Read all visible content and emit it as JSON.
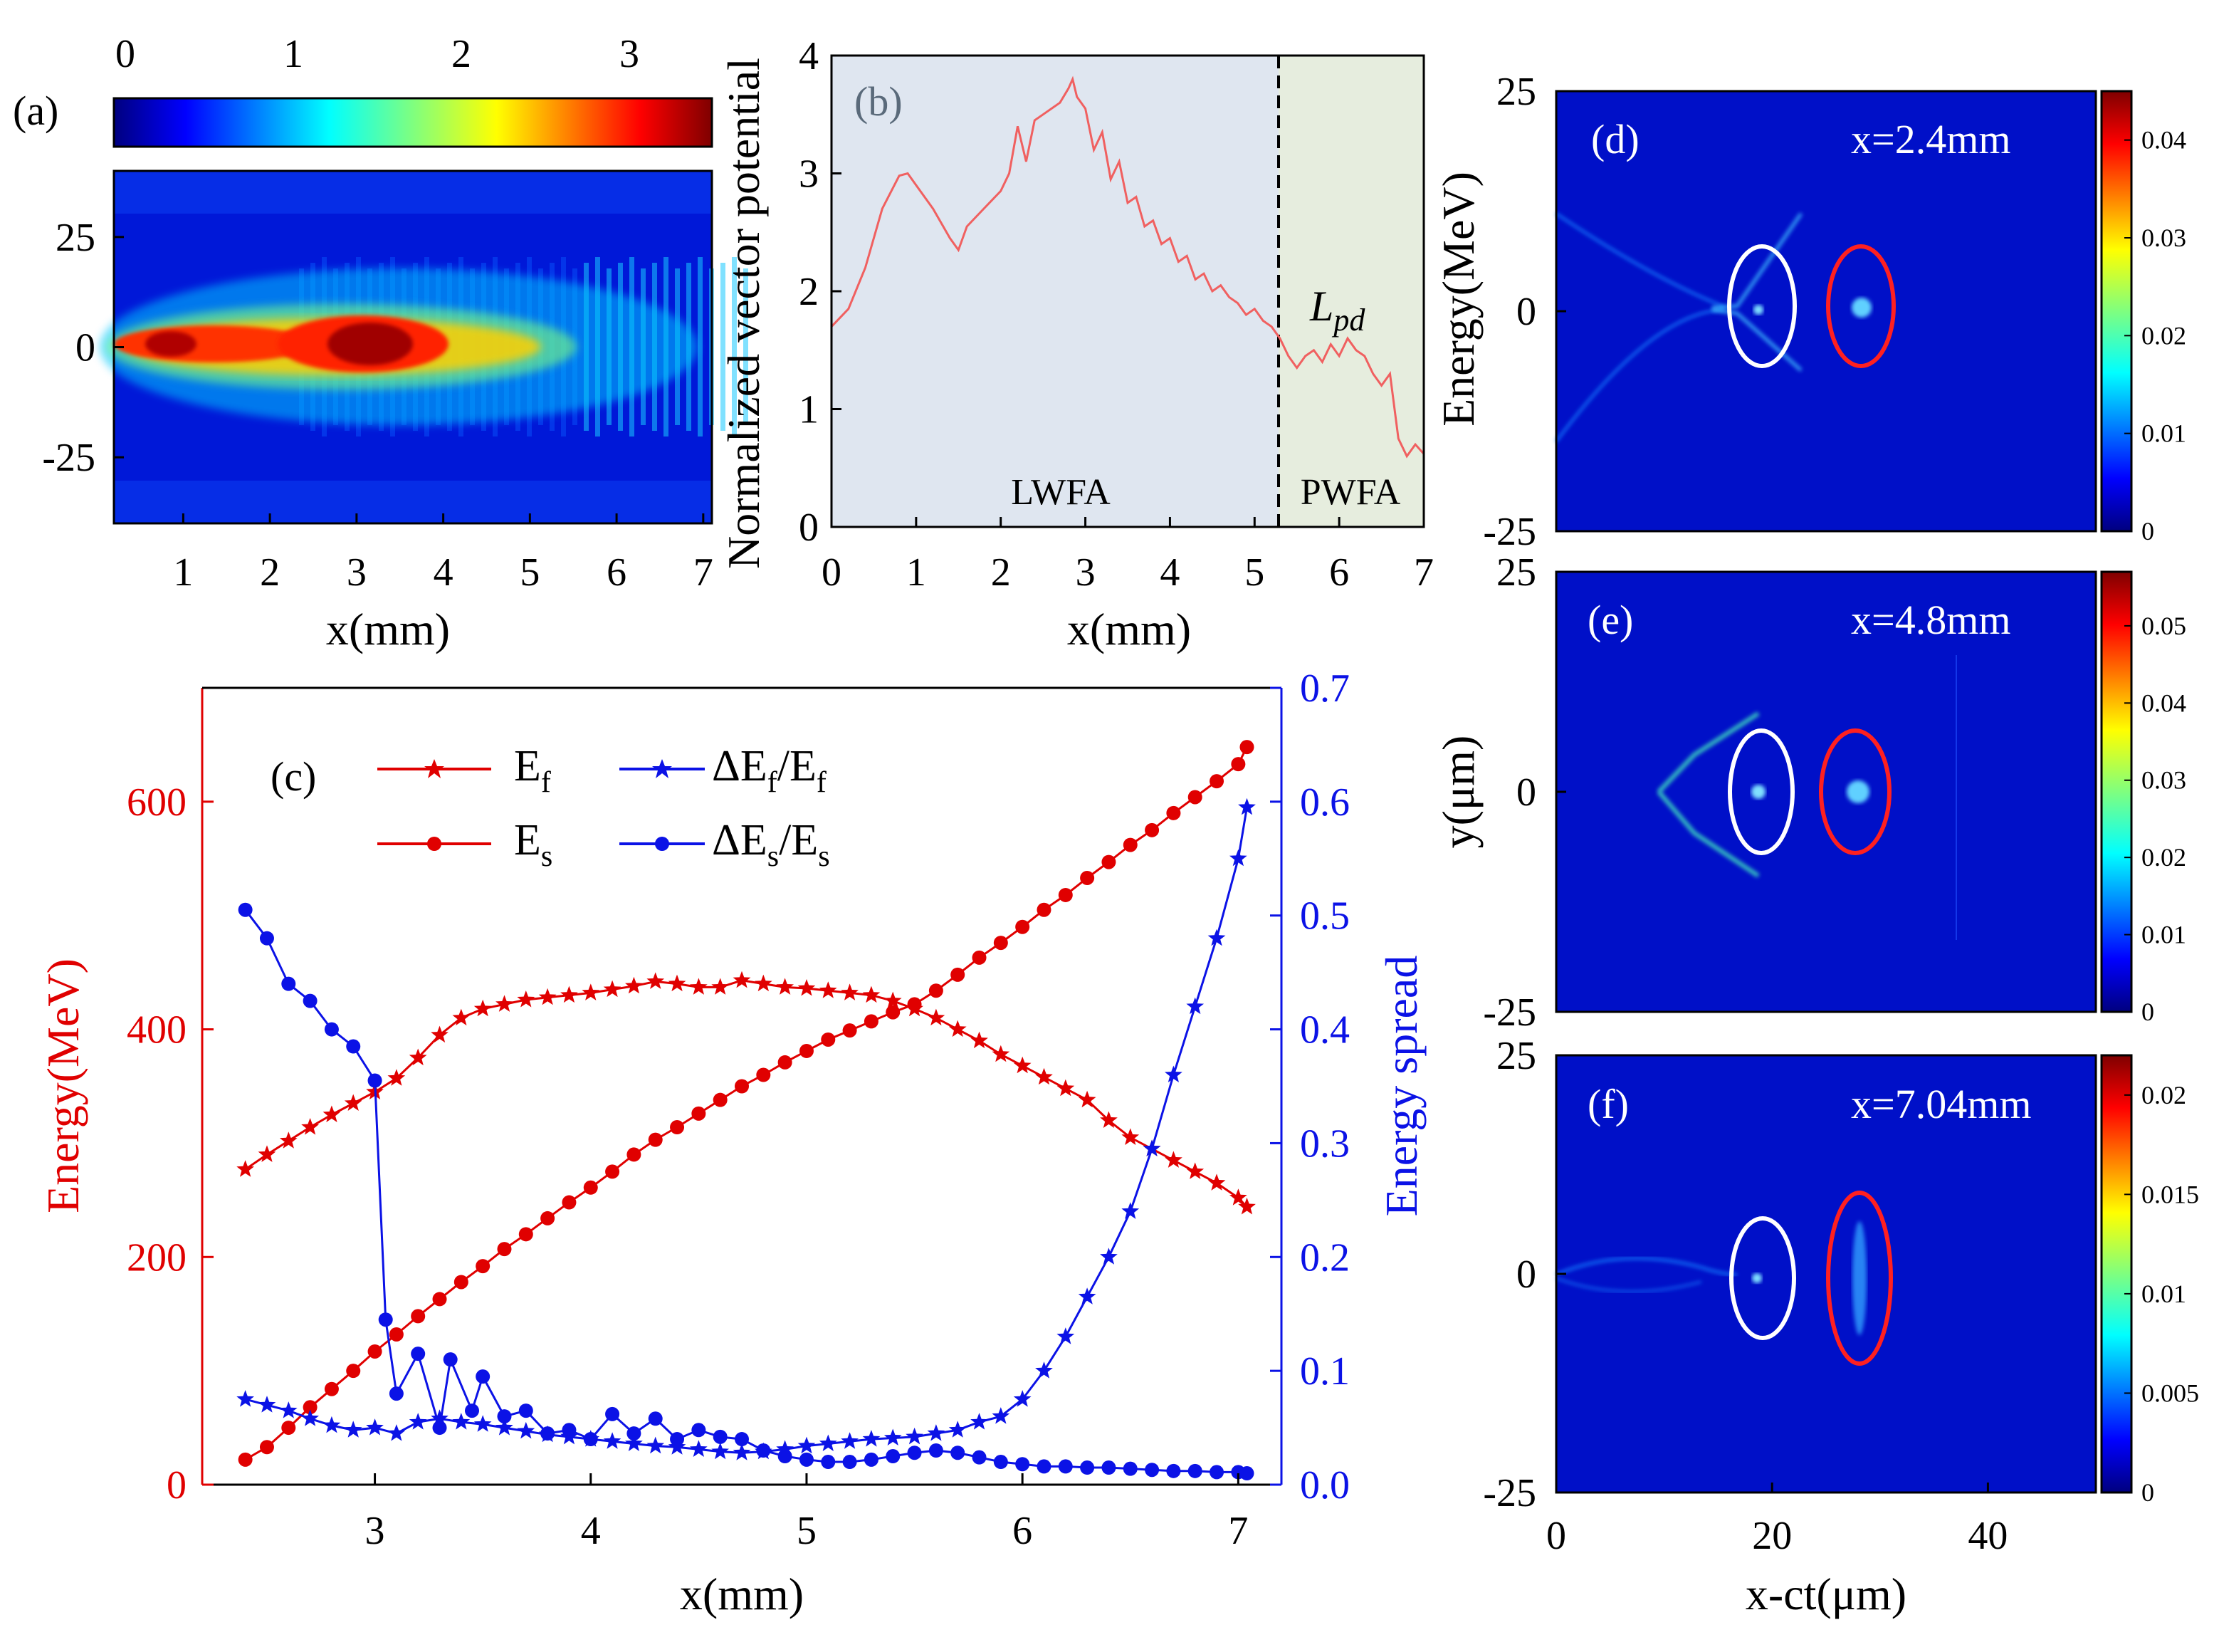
{
  "figure": {
    "panel_a": {
      "tag": "(a)",
      "colorbar_ticks": [
        "0",
        "1",
        "2",
        "3"
      ],
      "y_ticks": [
        "25",
        "0",
        "-25"
      ],
      "x_ticks": [
        "1",
        "2",
        "3",
        "4",
        "5",
        "6",
        "7"
      ],
      "xlabel": "x(mm)"
    },
    "panel_b": {
      "tag": "(b)",
      "ylabel": "Normalized  vector potential",
      "xlabel": "x(mm)",
      "region_left": "LWFA",
      "region_right": "PWFA",
      "annotation": "L",
      "annotation_sub": "pd",
      "x_ticks": [
        "0",
        "1",
        "2",
        "3",
        "4",
        "5",
        "6",
        "7"
      ],
      "y_ticks": [
        "0",
        "1",
        "2",
        "3",
        "4"
      ],
      "left_region_color": "#dfe6f0",
      "right_region_color": "#e6edde"
    },
    "panel_c": {
      "tag": "(c)",
      "xlabel": "x(mm)",
      "ylabel_left": "Energy(MeV)",
      "ylabel_right": "Energy spread",
      "x_ticks": [
        "3",
        "4",
        "5",
        "6",
        "7"
      ],
      "y_left_ticks": [
        "0",
        "200",
        "400",
        "600"
      ],
      "y_right_ticks": [
        "0.0",
        "0.1",
        "0.2",
        "0.3",
        "0.4",
        "0.5",
        "0.6",
        "0.7"
      ],
      "legend": [
        {
          "main": "E",
          "sub": "f"
        },
        {
          "main": "ΔE",
          "sub1": "f",
          "mid": "/E",
          "sub2": "f"
        },
        {
          "main": "E",
          "sub": "s"
        },
        {
          "main": "ΔE",
          "sub1": "s",
          "mid": "/E",
          "sub2": "s"
        }
      ]
    },
    "panel_d": {
      "tag": "(d)",
      "label": "x=2.4mm",
      "cbar_ticks": [
        "0.04",
        "0.03",
        "0.02",
        "0.01",
        "0"
      ]
    },
    "panel_e": {
      "tag": "(e)",
      "label": "x=4.8mm",
      "cbar_ticks": [
        "0.05",
        "0.04",
        "0.03",
        "0.02",
        "0.01",
        "0"
      ]
    },
    "panel_f": {
      "tag": "(f)",
      "label": "x=7.04mm",
      "cbar_ticks": [
        "0.02",
        "0.015",
        "0.01",
        "0.005",
        "0"
      ]
    },
    "right_column": {
      "y_ticks_d": [
        "25",
        "0",
        "-25"
      ],
      "y_ticks_e": [
        "25",
        "0",
        "-25"
      ],
      "y_ticks_f": [
        "25",
        "0",
        "-25"
      ],
      "ylabel_d": "Energy(MeV)",
      "ylabel_e": "y(μm)",
      "x_ticks": [
        "0",
        "20",
        "40"
      ],
      "xlabel": "x-ct(μm)"
    }
  },
  "chart_data": [
    {
      "type": "heatmap",
      "panel": "a",
      "xlabel": "x(mm)",
      "xlim": [
        0.2,
        7.1
      ],
      "ylim": [
        -40,
        40
      ],
      "colorbar_range": [
        0,
        3.5
      ],
      "colorscale": "jet",
      "description_values": {
        "peak_x_mm": 3.2,
        "peak_value": 3.3
      }
    },
    {
      "type": "line",
      "panel": "b",
      "xlabel": "x(mm)",
      "ylabel": "Normalized  vector potential",
      "xlim": [
        0,
        7
      ],
      "ylim": [
        0,
        4
      ],
      "divider_x": 5.35,
      "x": [
        0,
        0.2,
        0.4,
        0.6,
        0.8,
        0.9,
        1.0,
        1.2,
        1.4,
        1.5,
        1.6,
        1.8,
        2.0,
        2.1,
        2.2,
        2.3,
        2.4,
        2.5,
        2.6,
        2.7,
        2.8,
        2.85,
        2.9,
        3.0,
        3.1,
        3.2,
        3.3,
        3.4,
        3.5,
        3.6,
        3.7,
        3.8,
        3.9,
        4.0,
        4.1,
        4.2,
        4.3,
        4.4,
        4.5,
        4.6,
        4.7,
        4.8,
        4.9,
        5.0,
        5.1,
        5.2,
        5.3,
        5.4,
        5.5,
        5.6,
        5.7,
        5.8,
        5.9,
        6.0,
        6.1,
        6.2,
        6.3,
        6.4,
        6.5,
        6.6,
        6.7,
        6.8,
        6.9,
        7.0
      ],
      "y": [
        1.7,
        1.85,
        2.2,
        2.7,
        2.98,
        3.0,
        2.9,
        2.7,
        2.45,
        2.35,
        2.55,
        2.7,
        2.85,
        3.0,
        3.4,
        3.1,
        3.45,
        3.5,
        3.55,
        3.6,
        3.72,
        3.8,
        3.65,
        3.55,
        3.2,
        3.35,
        2.95,
        3.1,
        2.75,
        2.8,
        2.55,
        2.6,
        2.4,
        2.45,
        2.25,
        2.3,
        2.1,
        2.15,
        2.0,
        2.05,
        1.95,
        1.9,
        1.8,
        1.85,
        1.75,
        1.7,
        1.6,
        1.45,
        1.35,
        1.45,
        1.5,
        1.4,
        1.55,
        1.45,
        1.6,
        1.5,
        1.45,
        1.3,
        1.2,
        1.3,
        0.75,
        0.6,
        0.7,
        0.62
      ]
    },
    {
      "type": "line",
      "panel": "c",
      "xlabel": "x(mm)",
      "ylabel": "Energy(MeV)",
      "y2label": "Energy spread",
      "xlim": [
        2.2,
        7.2
      ],
      "ylim": [
        0,
        700
      ],
      "y2lim": [
        0,
        0.7
      ],
      "series": [
        {
          "name": "E_f",
          "axis": "left",
          "marker": "star",
          "color": "#e00000",
          "x": [
            2.4,
            2.5,
            2.6,
            2.7,
            2.8,
            2.9,
            3.0,
            3.1,
            3.2,
            3.3,
            3.4,
            3.5,
            3.6,
            3.7,
            3.8,
            3.9,
            4.0,
            4.1,
            4.2,
            4.3,
            4.4,
            4.5,
            4.6,
            4.7,
            4.8,
            4.9,
            5.0,
            5.1,
            5.2,
            5.3,
            5.4,
            5.5,
            5.6,
            5.7,
            5.8,
            5.9,
            6.0,
            6.1,
            6.2,
            6.3,
            6.4,
            6.5,
            6.6,
            6.7,
            6.8,
            6.9,
            7.0,
            7.04
          ],
          "values": [
            277,
            290,
            302,
            314,
            325,
            335,
            345,
            357,
            375,
            395,
            410,
            418,
            422,
            426,
            428,
            430,
            432,
            435,
            438,
            442,
            440,
            437,
            437,
            443,
            440,
            437,
            436,
            434,
            432,
            430,
            425,
            418,
            410,
            400,
            390,
            378,
            368,
            358,
            348,
            338,
            320,
            305,
            295,
            285,
            275,
            265,
            252,
            244
          ]
        },
        {
          "name": "E_s",
          "axis": "left",
          "marker": "circle",
          "color": "#e00000",
          "x": [
            2.4,
            2.5,
            2.6,
            2.7,
            2.8,
            2.9,
            3.0,
            3.1,
            3.2,
            3.3,
            3.4,
            3.5,
            3.6,
            3.7,
            3.8,
            3.9,
            4.0,
            4.1,
            4.2,
            4.3,
            4.4,
            4.5,
            4.6,
            4.7,
            4.8,
            4.9,
            5.0,
            5.1,
            5.2,
            5.3,
            5.4,
            5.5,
            5.6,
            5.7,
            5.8,
            5.9,
            6.0,
            6.1,
            6.2,
            6.3,
            6.4,
            6.5,
            6.6,
            6.7,
            6.8,
            6.9,
            7.0,
            7.04
          ],
          "values": [
            22,
            33,
            50,
            68,
            84,
            100,
            117,
            132,
            148,
            163,
            178,
            192,
            207,
            220,
            234,
            248,
            261,
            275,
            290,
            303,
            314,
            326,
            338,
            350,
            360,
            371,
            381,
            391,
            399,
            407,
            415,
            422,
            434,
            448,
            463,
            476,
            490,
            505,
            518,
            533,
            547,
            562,
            575,
            590,
            604,
            618,
            633,
            648
          ]
        },
        {
          "name": "ΔE_f/E_f",
          "axis": "right",
          "marker": "star",
          "color": "#0b12e6",
          "x": [
            2.4,
            2.5,
            2.6,
            2.7,
            2.8,
            2.9,
            3.0,
            3.1,
            3.2,
            3.3,
            3.4,
            3.5,
            3.6,
            3.7,
            3.8,
            3.9,
            4.0,
            4.1,
            4.2,
            4.3,
            4.4,
            4.5,
            4.6,
            4.7,
            4.8,
            4.9,
            5.0,
            5.1,
            5.2,
            5.3,
            5.4,
            5.5,
            5.6,
            5.7,
            5.8,
            5.9,
            6.0,
            6.1,
            6.2,
            6.3,
            6.4,
            6.5,
            6.6,
            6.7,
            6.8,
            6.9,
            7.0,
            7.04
          ],
          "values": [
            0.075,
            0.07,
            0.065,
            0.058,
            0.052,
            0.048,
            0.05,
            0.045,
            0.055,
            0.058,
            0.055,
            0.053,
            0.05,
            0.047,
            0.044,
            0.042,
            0.04,
            0.038,
            0.036,
            0.034,
            0.033,
            0.031,
            0.029,
            0.028,
            0.029,
            0.031,
            0.034,
            0.036,
            0.038,
            0.04,
            0.041,
            0.042,
            0.045,
            0.048,
            0.055,
            0.06,
            0.075,
            0.1,
            0.13,
            0.165,
            0.2,
            0.24,
            0.295,
            0.36,
            0.42,
            0.48,
            0.55,
            0.595
          ]
        },
        {
          "name": "ΔE_s/E_s",
          "axis": "right",
          "marker": "circle",
          "color": "#0b12e6",
          "x": [
            2.4,
            2.5,
            2.6,
            2.7,
            2.8,
            2.9,
            3.0,
            3.05,
            3.1,
            3.2,
            3.3,
            3.35,
            3.45,
            3.5,
            3.6,
            3.7,
            3.8,
            3.9,
            4.0,
            4.1,
            4.2,
            4.3,
            4.4,
            4.5,
            4.6,
            4.7,
            4.8,
            4.9,
            5.0,
            5.1,
            5.2,
            5.3,
            5.4,
            5.5,
            5.6,
            5.7,
            5.8,
            5.9,
            6.0,
            6.1,
            6.2,
            6.3,
            6.4,
            6.5,
            6.6,
            6.7,
            6.8,
            6.9,
            7.0,
            7.04
          ],
          "values": [
            0.505,
            0.48,
            0.44,
            0.425,
            0.4,
            0.385,
            0.355,
            0.145,
            0.08,
            0.115,
            0.05,
            0.11,
            0.065,
            0.095,
            0.06,
            0.065,
            0.045,
            0.048,
            0.04,
            0.062,
            0.045,
            0.058,
            0.04,
            0.048,
            0.042,
            0.04,
            0.03,
            0.025,
            0.022,
            0.02,
            0.02,
            0.022,
            0.025,
            0.028,
            0.03,
            0.028,
            0.024,
            0.02,
            0.018,
            0.016,
            0.016,
            0.015,
            0.015,
            0.014,
            0.013,
            0.012,
            0.012,
            0.011,
            0.011,
            0.01
          ]
        }
      ]
    },
    {
      "type": "heatmap",
      "panel": "d",
      "xlabel": "x-ct(μm)",
      "ylabel": "Energy(MeV)",
      "xlim": [
        0,
        50
      ],
      "ylim": [
        -25,
        25
      ],
      "colorbar_range": [
        0,
        0.045
      ]
    },
    {
      "type": "heatmap",
      "panel": "e",
      "xlabel": "x-ct(μm)",
      "ylabel": "y(μm)",
      "xlim": [
        0,
        50
      ],
      "ylim": [
        -25,
        25
      ],
      "colorbar_range": [
        0,
        0.057
      ]
    },
    {
      "type": "heatmap",
      "panel": "f",
      "xlabel": "x-ct(μm)",
      "xlim": [
        0,
        50
      ],
      "ylim": [
        -25,
        25
      ],
      "colorbar_range": [
        0,
        0.022
      ]
    }
  ]
}
